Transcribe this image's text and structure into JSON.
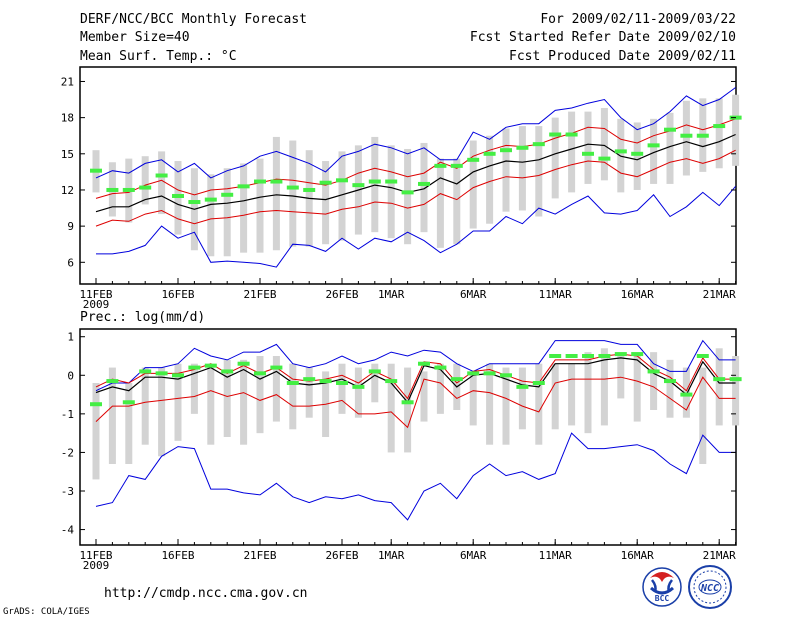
{
  "header": {
    "title": "DERF/NCC/BCC Monthly Forecast",
    "member_size": "Member Size=40",
    "variable_top": "Mean Surf. Temp.: °C",
    "period": "For 2009/02/11-2009/03/22",
    "fcst_start": "Fcst Started Refer Date 2009/02/10",
    "fcst_produced": "Fcst Produced Date 2009/02/11"
  },
  "footer": {
    "url": "http://cmdp.ncc.cma.gov.cn",
    "grads_credit": "GrADS: COLA/IGES",
    "logo_left_text": "BCC",
    "logo_right_text": "NCC"
  },
  "colors": {
    "box": "#d3d3d3",
    "median": "#44ee44",
    "mean": "#000000",
    "sd_band": "#dd0000",
    "extreme": "#0000dd",
    "frame": "#000000"
  },
  "chart_data": [
    {
      "type": "box",
      "title": "Mean Surf. Temp.: °C",
      "ylim": [
        4.2,
        22.2
      ],
      "yticks": [
        6,
        9,
        12,
        15,
        18,
        21
      ],
      "x": [
        1,
        2,
        3,
        4,
        5,
        6,
        7,
        8,
        9,
        10,
        11,
        12,
        13,
        14,
        15,
        16,
        17,
        18,
        19,
        20,
        21,
        22,
        23,
        24,
        25,
        26,
        27,
        28,
        29,
        30,
        31,
        32,
        33,
        34,
        35,
        36,
        37,
        38,
        39,
        40
      ],
      "xtick_labels": [
        {
          "day": 1,
          "label": "11FEB",
          "sub": "2009"
        },
        {
          "day": 6,
          "label": "16FEB"
        },
        {
          "day": 11,
          "label": "21FEB"
        },
        {
          "day": 16,
          "label": "26FEB"
        },
        {
          "day": 19,
          "label": "1MAR"
        },
        {
          "day": 24,
          "label": "6MAR"
        },
        {
          "day": 29,
          "label": "11MAR"
        },
        {
          "day": 34,
          "label": "16MAR"
        },
        {
          "day": 39,
          "label": "21MAR"
        }
      ],
      "box_low": [
        11.8,
        11.5,
        11.8,
        11.5,
        12.0,
        11.3,
        10.5,
        10.0,
        10.0,
        10.0,
        10.3,
        10.7,
        10.8,
        10.8,
        10.6,
        10.2,
        10.5,
        10.8,
        10.8,
        10.6,
        10.8,
        10.4,
        10.4,
        12.0,
        12.5,
        12.8,
        12.8,
        12.5,
        13.5,
        14.0,
        14.5,
        14.8,
        13.8,
        13.3,
        13.8,
        14.3,
        14.8,
        14.8,
        14.8,
        15.3
      ],
      "box_high": [
        14.8,
        14.3,
        14.6,
        14.8,
        15.2,
        14.4,
        13.8,
        13.3,
        13.8,
        14.2,
        14.6,
        16.4,
        16.1,
        15.3,
        14.4,
        15.2,
        15.7,
        16.4,
        15.7,
        15.4,
        15.9,
        14.6,
        14.6,
        16.1,
        16.5,
        17.1,
        17.3,
        17.3,
        18.0,
        18.5,
        18.5,
        18.8,
        17.9,
        17.6,
        17.9,
        18.4,
        19.4,
        19.6,
        19.6,
        19.9
      ],
      "whisker_low": [
        11.8,
        9.8,
        9.3,
        10.8,
        10.0,
        8.3,
        7.0,
        6.5,
        6.5,
        6.8,
        6.8,
        7.0,
        7.3,
        7.3,
        7.5,
        7.8,
        8.3,
        8.5,
        8.0,
        7.5,
        8.5,
        7.2,
        7.5,
        8.8,
        9.2,
        10.2,
        10.3,
        9.8,
        11.3,
        11.8,
        12.5,
        12.8,
        11.8,
        12.0,
        12.5,
        12.5,
        13.2,
        13.5,
        13.8,
        14.0
      ],
      "whisker_high": [
        15.3,
        14.3,
        14.6,
        14.8,
        15.2,
        14.4,
        13.8,
        13.3,
        13.8,
        14.2,
        14.6,
        16.4,
        16.1,
        15.3,
        14.4,
        15.2,
        15.7,
        16.4,
        15.7,
        15.4,
        15.9,
        14.6,
        14.6,
        16.1,
        16.5,
        17.1,
        17.3,
        17.3,
        18.0,
        18.5,
        18.5,
        18.8,
        17.9,
        17.6,
        17.9,
        18.4,
        19.4,
        19.6,
        19.6,
        19.9
      ],
      "median": [
        13.6,
        12.0,
        12.0,
        12.2,
        13.2,
        11.5,
        11.0,
        11.2,
        11.6,
        12.3,
        12.7,
        12.7,
        12.2,
        12.0,
        12.6,
        12.8,
        12.4,
        12.7,
        12.7,
        11.8,
        12.5,
        14.0,
        14.0,
        14.5,
        15.0,
        15.3,
        15.5,
        15.8,
        16.6,
        16.6,
        15.0,
        14.6,
        15.2,
        15.0,
        15.7,
        17.0,
        16.5,
        16.5,
        17.3,
        18.0
      ],
      "mean": [
        10.2,
        10.6,
        10.6,
        11.2,
        11.5,
        10.8,
        10.4,
        10.8,
        10.9,
        11.1,
        11.4,
        11.6,
        11.5,
        11.3,
        11.2,
        11.6,
        12.0,
        12.4,
        12.2,
        11.8,
        12.1,
        13.0,
        12.5,
        13.5,
        14.0,
        14.4,
        14.3,
        14.5,
        15.0,
        15.4,
        15.8,
        15.7,
        14.8,
        14.5,
        15.1,
        15.6,
        16.0,
        15.6,
        16.0,
        16.6
      ],
      "sd_upper": [
        11.3,
        11.7,
        11.8,
        12.4,
        12.8,
        12.0,
        11.6,
        12.0,
        12.1,
        12.3,
        12.6,
        12.9,
        12.8,
        12.6,
        12.4,
        12.8,
        13.4,
        13.8,
        13.5,
        13.1,
        13.4,
        14.3,
        13.8,
        14.8,
        15.3,
        15.7,
        15.6,
        15.8,
        16.3,
        16.7,
        17.2,
        17.1,
        16.2,
        15.9,
        16.5,
        16.9,
        17.4,
        17.0,
        17.4,
        17.9
      ],
      "sd_lower": [
        9.0,
        9.5,
        9.4,
        10.0,
        10.3,
        9.6,
        9.2,
        9.6,
        9.7,
        9.9,
        10.2,
        10.3,
        10.2,
        10.1,
        10.0,
        10.4,
        10.6,
        11.0,
        10.9,
        10.5,
        10.8,
        11.7,
        11.2,
        12.2,
        12.7,
        13.1,
        13.0,
        13.2,
        13.7,
        14.1,
        14.4,
        14.3,
        13.4,
        13.1,
        13.7,
        14.3,
        14.6,
        14.2,
        14.6,
        15.3
      ],
      "max_line": [
        13.0,
        13.6,
        13.4,
        14.2,
        14.5,
        13.5,
        14.2,
        13.0,
        13.6,
        14.0,
        14.8,
        15.2,
        14.7,
        14.2,
        13.5,
        14.8,
        15.2,
        15.8,
        15.5,
        15.0,
        15.5,
        14.5,
        14.5,
        16.8,
        16.2,
        17.2,
        17.5,
        17.5,
        18.6,
        18.8,
        19.2,
        19.5,
        18.0,
        17.0,
        17.5,
        18.5,
        19.8,
        19.0,
        19.5,
        20.5
      ],
      "min_line": [
        6.7,
        6.7,
        6.9,
        7.4,
        9.0,
        8.0,
        8.5,
        6.0,
        6.1,
        6.0,
        5.9,
        5.6,
        7.5,
        7.4,
        6.9,
        8.0,
        7.1,
        8.0,
        7.7,
        8.5,
        7.8,
        6.8,
        7.5,
        8.6,
        8.6,
        9.8,
        9.2,
        10.5,
        10.0,
        10.8,
        11.5,
        10.1,
        10.0,
        10.3,
        11.6,
        9.8,
        10.6,
        11.8,
        10.7,
        12.3
      ]
    },
    {
      "type": "box",
      "title": "Prec.: log(mm/d)",
      "ylim": [
        -4.4,
        1.2
      ],
      "yticks": [
        -4,
        -3,
        -2,
        -1,
        0,
        1
      ],
      "x": [
        1,
        2,
        3,
        4,
        5,
        6,
        7,
        8,
        9,
        10,
        11,
        12,
        13,
        14,
        15,
        16,
        17,
        18,
        19,
        20,
        21,
        22,
        23,
        24,
        25,
        26,
        27,
        28,
        29,
        30,
        31,
        32,
        33,
        34,
        35,
        36,
        37,
        38,
        39,
        40
      ],
      "xtick_labels": [
        {
          "day": 1,
          "label": "11FEB",
          "sub": "2009"
        },
        {
          "day": 6,
          "label": "16FEB"
        },
        {
          "day": 11,
          "label": "21FEB"
        },
        {
          "day": 16,
          "label": "26FEB"
        },
        {
          "day": 19,
          "label": "1MAR"
        },
        {
          "day": 24,
          "label": "6MAR"
        },
        {
          "day": 29,
          "label": "11MAR"
        },
        {
          "day": 34,
          "label": "16MAR"
        },
        {
          "day": 39,
          "label": "21MAR"
        }
      ],
      "box_low": [
        -2.7,
        -2.3,
        -2.3,
        -1.8,
        -2.1,
        -1.7,
        -1.0,
        -1.8,
        -1.6,
        -1.8,
        -1.5,
        -1.2,
        -1.4,
        -1.1,
        -1.6,
        -1.0,
        -1.1,
        -0.7,
        -2.0,
        -2.0,
        -1.2,
        -1.0,
        -0.9,
        -1.3,
        -1.8,
        -1.8,
        -1.4,
        -1.8,
        -1.4,
        -1.3,
        -1.5,
        -1.3,
        -0.6,
        -1.2,
        -0.9,
        -1.1,
        -1.1,
        -2.3,
        -1.3,
        -1.3
      ],
      "box_high": [
        -0.2,
        0.2,
        -0.2,
        0.2,
        0.2,
        0.3,
        0.3,
        0.2,
        0.4,
        0.4,
        0.5,
        0.5,
        0.3,
        0.2,
        0.1,
        0.3,
        0.2,
        0.3,
        0.3,
        0.2,
        0.1,
        0.3,
        0.3,
        0.1,
        0.3,
        0.2,
        0.2,
        0.3,
        0.3,
        0.3,
        0.6,
        0.7,
        0.6,
        0.5,
        0.6,
        0.4,
        0.2,
        0.2,
        0.7,
        0.5
      ],
      "whisker_low": [
        -2.7,
        -2.3,
        -2.3,
        -1.8,
        -2.1,
        -1.7,
        -1.0,
        -1.8,
        -1.6,
        -1.8,
        -1.5,
        -1.2,
        -1.4,
        -1.1,
        -1.6,
        -1.0,
        -1.1,
        -0.7,
        -2.0,
        -2.0,
        -1.2,
        -1.0,
        -0.9,
        -1.3,
        -1.8,
        -1.8,
        -1.4,
        -1.8,
        -1.4,
        -1.3,
        -1.5,
        -1.3,
        -0.6,
        -1.2,
        -0.9,
        -1.1,
        -1.1,
        -2.3,
        -1.3,
        -1.3
      ],
      "whisker_high": [
        -0.2,
        0.2,
        -0.2,
        0.2,
        0.2,
        0.3,
        0.3,
        0.2,
        0.4,
        0.4,
        0.5,
        0.5,
        0.3,
        0.2,
        0.1,
        0.3,
        0.2,
        0.3,
        0.3,
        0.2,
        0.1,
        0.3,
        0.3,
        0.1,
        0.3,
        0.2,
        0.2,
        0.3,
        0.3,
        0.3,
        0.6,
        0.7,
        0.6,
        0.5,
        0.6,
        0.4,
        0.2,
        0.2,
        0.7,
        0.5
      ],
      "median": [
        -0.75,
        -0.15,
        -0.7,
        0.1,
        0.05,
        0.0,
        0.2,
        0.25,
        0.1,
        0.3,
        0.05,
        0.2,
        -0.2,
        -0.1,
        -0.15,
        -0.2,
        -0.3,
        0.1,
        -0.15,
        -0.7,
        0.3,
        0.2,
        -0.1,
        0.05,
        0.05,
        0.0,
        -0.3,
        -0.2,
        0.5,
        0.5,
        0.5,
        0.5,
        0.55,
        0.55,
        0.1,
        -0.15,
        -0.5,
        0.5,
        -0.1,
        -0.1
      ],
      "mean": [
        -0.45,
        -0.3,
        -0.4,
        -0.05,
        -0.05,
        -0.1,
        0.05,
        0.2,
        -0.05,
        0.15,
        -0.1,
        0.1,
        -0.2,
        -0.25,
        -0.2,
        -0.1,
        -0.3,
        0.0,
        -0.2,
        -0.7,
        0.25,
        0.15,
        -0.3,
        0.0,
        0.05,
        -0.1,
        -0.25,
        -0.3,
        0.3,
        0.3,
        0.3,
        0.4,
        0.45,
        0.4,
        0.05,
        -0.15,
        -0.5,
        0.35,
        -0.2,
        -0.2
      ],
      "sd_upper": [
        -0.3,
        -0.1,
        -0.2,
        0.05,
        0.05,
        0.05,
        0.15,
        0.3,
        0.05,
        0.25,
        0.05,
        0.2,
        -0.1,
        -0.15,
        -0.1,
        0.0,
        -0.2,
        0.1,
        -0.1,
        -0.6,
        0.35,
        0.3,
        -0.2,
        0.1,
        0.15,
        0.0,
        -0.15,
        -0.2,
        0.4,
        0.4,
        0.4,
        0.5,
        0.55,
        0.5,
        0.15,
        -0.05,
        -0.4,
        0.45,
        -0.1,
        -0.1
      ],
      "sd_lower": [
        -1.2,
        -0.8,
        -0.8,
        -0.7,
        -0.65,
        -0.6,
        -0.55,
        -0.4,
        -0.55,
        -0.45,
        -0.65,
        -0.5,
        -0.8,
        -0.8,
        -0.75,
        -0.65,
        -1.0,
        -1.0,
        -0.95,
        -1.35,
        -0.1,
        -0.2,
        -0.6,
        -0.4,
        -0.45,
        -0.6,
        -0.8,
        -0.95,
        -0.2,
        -0.1,
        -0.1,
        -0.1,
        -0.05,
        -0.15,
        -0.3,
        -0.6,
        -0.9,
        -0.05,
        -0.6,
        -0.6
      ],
      "max_line": [
        -0.4,
        -0.2,
        -0.2,
        0.2,
        0.2,
        0.3,
        0.7,
        0.5,
        0.4,
        0.6,
        0.6,
        0.8,
        0.3,
        0.2,
        0.3,
        0.5,
        0.3,
        0.4,
        0.6,
        0.5,
        0.65,
        0.6,
        0.3,
        0.1,
        0.3,
        0.3,
        0.3,
        0.3,
        0.9,
        0.9,
        0.9,
        0.9,
        0.8,
        0.8,
        0.3,
        0.1,
        0.1,
        0.9,
        0.4,
        0.4
      ],
      "min_line": [
        -3.4,
        -3.3,
        -2.6,
        -2.7,
        -2.1,
        -1.85,
        -1.9,
        -2.95,
        -2.95,
        -3.05,
        -3.1,
        -2.8,
        -3.15,
        -3.3,
        -3.15,
        -3.2,
        -3.1,
        -3.25,
        -3.3,
        -3.75,
        -3.0,
        -2.8,
        -3.2,
        -2.6,
        -2.3,
        -2.6,
        -2.5,
        -2.7,
        -2.55,
        -1.5,
        -1.9,
        -1.9,
        -1.85,
        -1.8,
        -1.95,
        -2.3,
        -2.55,
        -1.55,
        -2.0,
        -2.0
      ]
    }
  ]
}
